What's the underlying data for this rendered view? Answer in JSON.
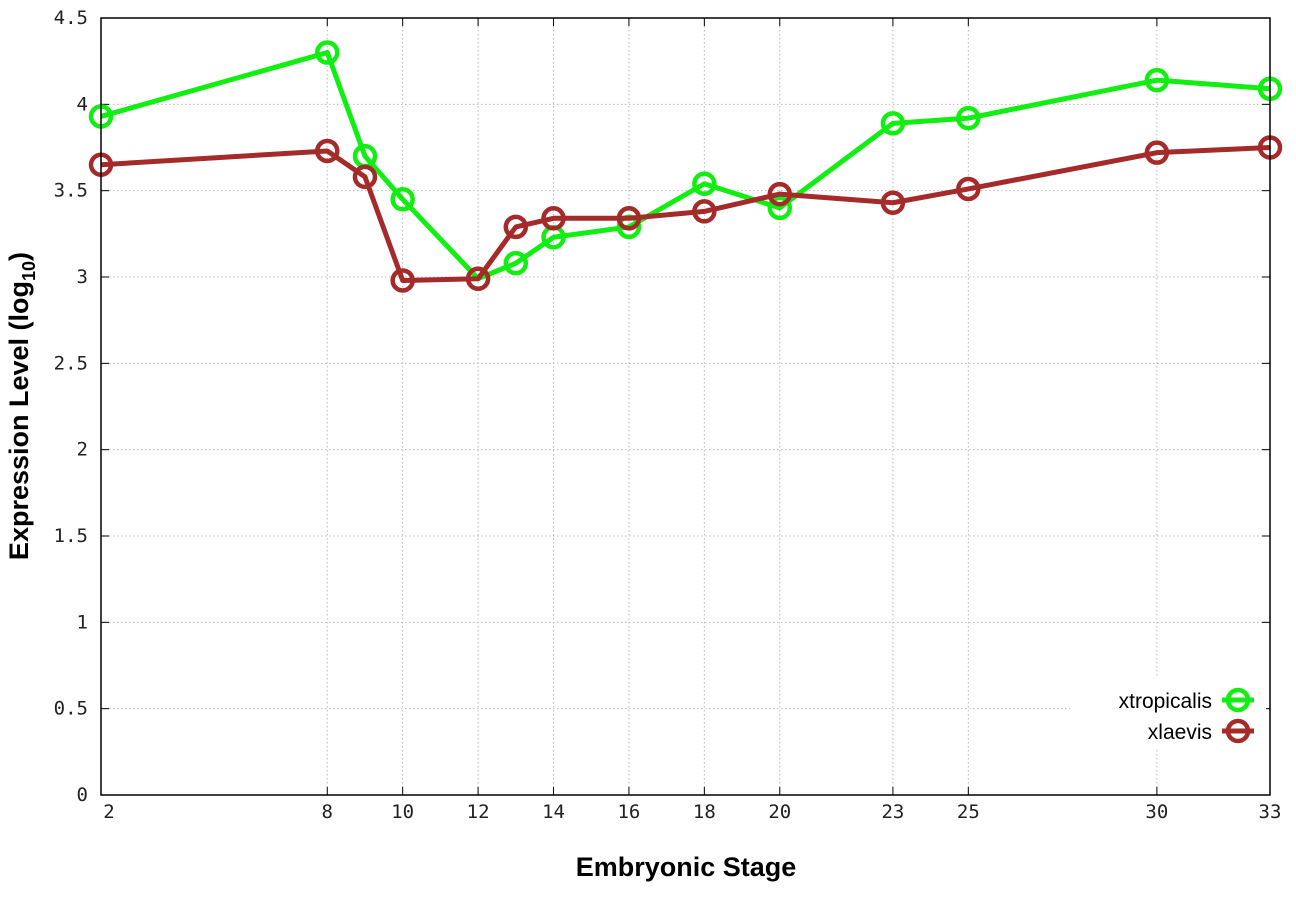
{
  "chart_data": {
    "type": "line",
    "title": "",
    "xlabel": "Embryonic Stage",
    "ylabel": "Expression Level (log10)",
    "ylabel_parts": {
      "main": "Expression Level (log",
      "sub": "10",
      "end": ")"
    },
    "x": [
      2,
      8,
      9,
      10,
      12,
      13,
      14,
      16,
      18,
      20,
      23,
      25,
      30,
      33
    ],
    "xticks": [
      2,
      8,
      10,
      12,
      14,
      16,
      18,
      20,
      23,
      25,
      30,
      33
    ],
    "xlim": [
      2,
      33
    ],
    "ylim": [
      0,
      4.5
    ],
    "yticks": [
      "0",
      "0.5",
      "1",
      "1.5",
      "2",
      "2.5",
      "3",
      "3.5",
      "4",
      "4.5"
    ],
    "grid": true,
    "legend_position": "bottom-right",
    "series": [
      {
        "name": "xtropicalis",
        "color": "#11ee11",
        "marker": "open-circle",
        "values": [
          3.93,
          4.3,
          3.7,
          3.45,
          2.99,
          3.08,
          3.23,
          3.29,
          3.54,
          3.4,
          3.89,
          3.92,
          4.14,
          4.09
        ]
      },
      {
        "name": "xlaevis",
        "color": "#a52a2a",
        "marker": "open-circle",
        "values": [
          3.65,
          3.73,
          3.58,
          2.98,
          2.99,
          3.29,
          3.34,
          3.34,
          3.38,
          3.48,
          3.43,
          3.51,
          3.72,
          3.75
        ]
      }
    ]
  }
}
